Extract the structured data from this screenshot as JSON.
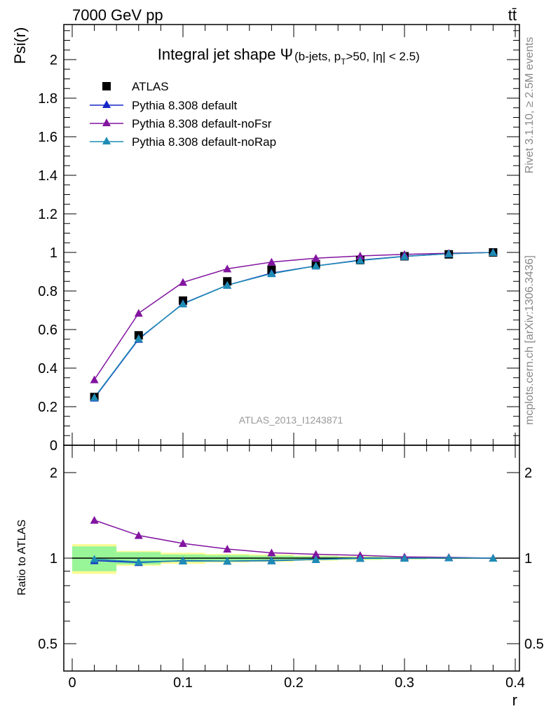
{
  "header": {
    "left": "7000 GeV pp",
    "right": "tt̄"
  },
  "side_labels": {
    "rivet": "Rivet 3.1.10, ≥ 2.5M events",
    "mcplots": "mcplots.cern.ch [arXiv:1306.3436]"
  },
  "watermark": "ATLAS_2013_I1243871",
  "chart_data": {
    "type": "line",
    "title": "Integral jet shape Ψ",
    "title_symbol": "Ψ",
    "subtitle": "(b-jets, pT>50, |η| < 2.5)",
    "subtitle_parts": [
      "(b-jets, p",
      "T",
      ">50, |η| < 2.5)"
    ],
    "xlabel": "r",
    "ylabel": "Psi(r)",
    "ratio_ylabel": "Ratio to ATLAS",
    "xlim": [
      -0.0,
      0.4
    ],
    "ylim": [
      0,
      2.18
    ],
    "ratio_ylim": [
      0.35,
      2.35
    ],
    "ratio_scale": "log",
    "x_ticks": [
      "0",
      "0.1",
      "0.2",
      "0.3",
      "0.4"
    ],
    "y_ticks": [
      "0",
      "0.2",
      "0.4",
      "0.6",
      "0.8",
      "1",
      "1.2",
      "1.4",
      "1.6",
      "1.8",
      "2"
    ],
    "ratio_ticks": [
      "0.5",
      "1",
      "2"
    ],
    "legend_position": "top-left",
    "x": [
      0.02,
      0.06,
      0.1,
      0.14,
      0.18,
      0.22,
      0.26,
      0.3,
      0.34,
      0.38
    ],
    "bin_edges": [
      0.0,
      0.04,
      0.08,
      0.12,
      0.16,
      0.2,
      0.24,
      0.28,
      0.32,
      0.36,
      0.4
    ],
    "data": {
      "name": "ATLAS",
      "color": "#000000",
      "values": [
        0.25,
        0.57,
        0.75,
        0.85,
        0.91,
        0.94,
        0.96,
        0.98,
        0.99,
        1.0
      ],
      "band_inner": [
        0.1,
        0.05,
        0.03,
        0.025,
        0.02,
        0.015,
        0.01,
        0.008,
        0.005,
        0.002
      ],
      "band_outer": [
        0.12,
        0.06,
        0.045,
        0.035,
        0.03,
        0.02,
        0.015,
        0.01,
        0.006,
        0.003
      ]
    },
    "series": [
      {
        "name": "Pythia 8.308 default",
        "color": "#1428c8",
        "values": [
          0.245,
          0.55,
          0.735,
          0.83,
          0.893,
          0.93,
          0.96,
          0.98,
          0.993,
          1.0
        ]
      },
      {
        "name": "Pythia 8.308 default-noFsr",
        "color": "#8214a0",
        "values": [
          0.34,
          0.685,
          0.845,
          0.915,
          0.95,
          0.97,
          0.982,
          0.99,
          0.996,
          1.0
        ]
      },
      {
        "name": "Pythia 8.308 default-noRap",
        "color": "#1e8cb4",
        "values": [
          0.248,
          0.553,
          0.733,
          0.83,
          0.89,
          0.93,
          0.958,
          0.979,
          0.993,
          1.0
        ]
      }
    ],
    "band_colors": {
      "inner": "#98f598",
      "outer": "#fafa96"
    }
  }
}
